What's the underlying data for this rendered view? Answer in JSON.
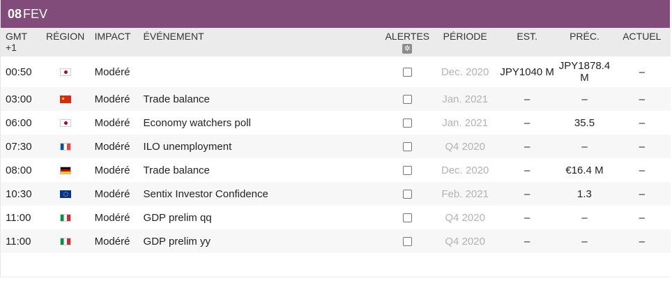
{
  "date_bar": {
    "day": "08",
    "month": "FEV"
  },
  "headers": {
    "time": "GMT +1",
    "region": "RÉGION",
    "impact": "IMPACT",
    "event": "ÉVÉNEMENT",
    "alerts": "ALERTES",
    "period": "PÉRIODE",
    "est": "EST.",
    "prev": "PRÉC.",
    "actual": "ACTUEL"
  },
  "alerts_settings_icon": "gear-icon",
  "colors": {
    "date_bar": "#814b7a",
    "header_bg": "#ebebeb",
    "period_text": "#b3b3b3"
  },
  "rows": [
    {
      "time": "00:50",
      "region": "jp",
      "impact": "Modéré",
      "event": "",
      "period": "Dec. 2020",
      "est": "JPY1040 M",
      "prev": "JPY1878.4 M",
      "actual": "–"
    },
    {
      "time": "03:00",
      "region": "cn",
      "impact": "Modéré",
      "event": "Trade balance",
      "period": "Jan. 2021",
      "est": "–",
      "prev": "–",
      "actual": "–"
    },
    {
      "time": "06:00",
      "region": "jp",
      "impact": "Modéré",
      "event": "Economy watchers poll",
      "period": "Jan. 2021",
      "est": "–",
      "prev": "35.5",
      "actual": "–"
    },
    {
      "time": "07:30",
      "region": "fr",
      "impact": "Modéré",
      "event": "ILO unemployment",
      "period": "Q4 2020",
      "est": "–",
      "prev": "–",
      "actual": "–"
    },
    {
      "time": "08:00",
      "region": "de",
      "impact": "Modéré",
      "event": "Trade balance",
      "period": "Dec. 2020",
      "est": "–",
      "prev": "€16.4 M",
      "actual": "–"
    },
    {
      "time": "10:30",
      "region": "eu",
      "impact": "Modéré",
      "event": "Sentix Investor Confidence",
      "period": "Feb. 2021",
      "est": "–",
      "prev": "1.3",
      "actual": "–"
    },
    {
      "time": "11:00",
      "region": "it",
      "impact": "Modéré",
      "event": "GDP prelim qq",
      "period": "Q4 2020",
      "est": "–",
      "prev": "–",
      "actual": "–"
    },
    {
      "time": "11:00",
      "region": "it",
      "impact": "Modéré",
      "event": "GDP prelim yy",
      "period": "Q4 2020",
      "est": "–",
      "prev": "–",
      "actual": "–"
    }
  ]
}
